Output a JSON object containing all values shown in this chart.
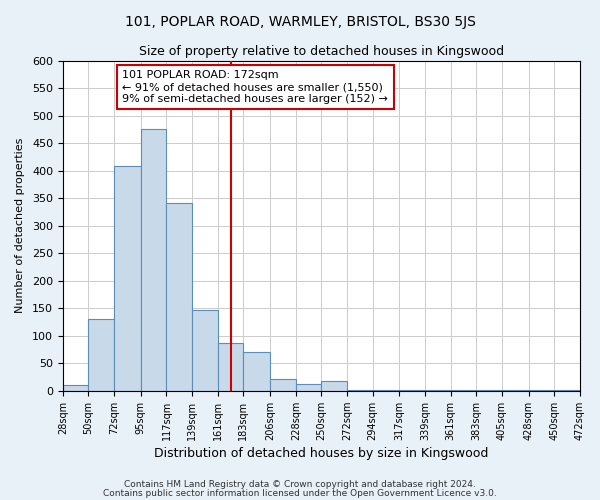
{
  "title1": "101, POPLAR ROAD, WARMLEY, BRISTOL, BS30 5JS",
  "title2": "Size of property relative to detached houses in Kingswood",
  "xlabel": "Distribution of detached houses by size in Kingswood",
  "ylabel": "Number of detached properties",
  "footer1": "Contains HM Land Registry data © Crown copyright and database right 2024.",
  "footer2": "Contains public sector information licensed under the Open Government Licence v3.0.",
  "bin_edges": [
    28,
    50,
    72,
    95,
    117,
    139,
    161,
    183,
    206,
    228,
    250,
    272,
    294,
    317,
    339,
    361,
    383,
    405,
    428,
    450,
    472
  ],
  "bar_heights": [
    10,
    130,
    408,
    475,
    342,
    147,
    87,
    70,
    22,
    12,
    17,
    2,
    2,
    2,
    2,
    2,
    2,
    2,
    2,
    2
  ],
  "bar_color": "#c8d9ea",
  "bar_edge_color": "#5b8db8",
  "property_size": 172,
  "vline_color": "#cc0000",
  "annotation_line1": "101 POPLAR ROAD: 172sqm",
  "annotation_line2": "← 91% of detached houses are smaller (1,550)",
  "annotation_line3": "9% of semi-detached houses are larger (152) →",
  "annotation_box_color": "#ffffff",
  "annotation_box_edge_color": "#cc0000",
  "ylim": [
    0,
    600
  ],
  "xlim": [
    28,
    472
  ],
  "grid_color": "#cccccc",
  "plot_bg_color": "#ffffff",
  "fig_bg_color": "#e8f0f8",
  "title1_fontsize": 10,
  "title2_fontsize": 9,
  "xlabel_fontsize": 9,
  "ylabel_fontsize": 8,
  "tick_fontsize": 7,
  "annotation_fontsize": 8,
  "footer_fontsize": 6.5
}
